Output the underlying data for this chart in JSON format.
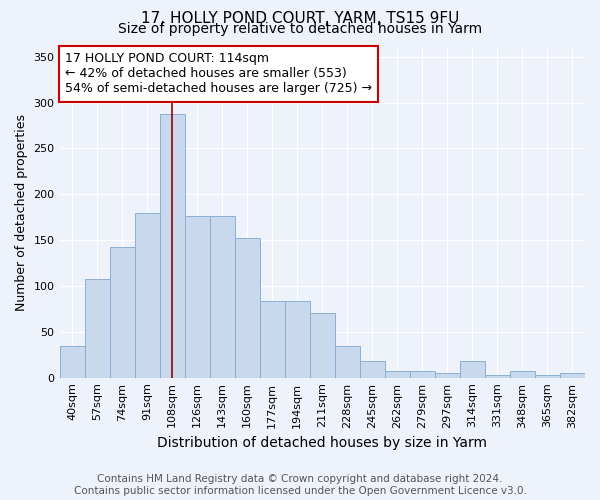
{
  "title1": "17, HOLLY POND COURT, YARM, TS15 9FU",
  "title2": "Size of property relative to detached houses in Yarm",
  "xlabel": "Distribution of detached houses by size in Yarm",
  "ylabel": "Number of detached properties",
  "categories": [
    "40sqm",
    "57sqm",
    "74sqm",
    "91sqm",
    "108sqm",
    "126sqm",
    "143sqm",
    "160sqm",
    "177sqm",
    "194sqm",
    "211sqm",
    "228sqm",
    "245sqm",
    "262sqm",
    "279sqm",
    "297sqm",
    "314sqm",
    "331sqm",
    "348sqm",
    "365sqm",
    "382sqm"
  ],
  "values": [
    35,
    108,
    142,
    180,
    288,
    176,
    176,
    152,
    84,
    84,
    70,
    35,
    18,
    7,
    7,
    5,
    18,
    3,
    7,
    3,
    5
  ],
  "bar_color": "#c9d9ed",
  "bar_edge_color": "#8bafd4",
  "background_color": "#eef2fa",
  "vline_color": "#990000",
  "annotation_text": "17 HOLLY POND COURT: 114sqm\n← 42% of detached houses are smaller (553)\n54% of semi-detached houses are larger (725) →",
  "ylim": [
    0,
    360
  ],
  "yticks": [
    0,
    50,
    100,
    150,
    200,
    250,
    300,
    350
  ],
  "footnote": "Contains HM Land Registry data © Crown copyright and database right 2024.\nContains public sector information licensed under the Open Government Licence v3.0.",
  "title1_fontsize": 11,
  "title2_fontsize": 10,
  "xlabel_fontsize": 10,
  "ylabel_fontsize": 9,
  "tick_fontsize": 8,
  "annotation_fontsize": 9,
  "footnote_fontsize": 7.5
}
